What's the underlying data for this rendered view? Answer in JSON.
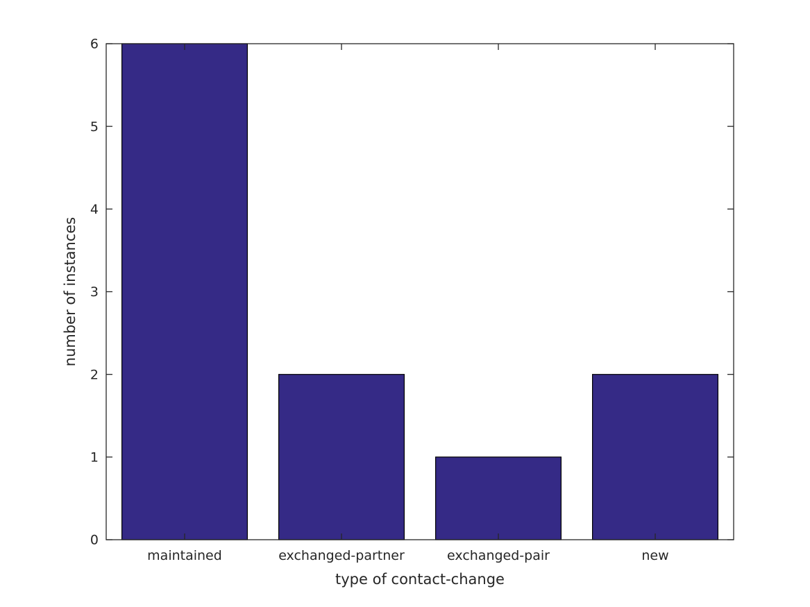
{
  "figure": {
    "background": "#ffffff"
  },
  "chart_data": {
    "type": "bar",
    "categories": [
      "maintained",
      "exchanged-partner",
      "exchanged-pair",
      "new"
    ],
    "values": [
      6,
      2,
      1,
      2
    ],
    "title": "",
    "xlabel": "type of contact-change",
    "ylabel": "number of instances",
    "ylim": [
      0,
      6
    ],
    "yticks": [
      0,
      1,
      2,
      3,
      4,
      5,
      6
    ],
    "grid": false,
    "legend": null,
    "bar_color": "#352a86",
    "bar_edge_color": "#000000",
    "axis_color": "#262626",
    "text_color": "#262626",
    "bar_width_fraction": 0.8
  }
}
